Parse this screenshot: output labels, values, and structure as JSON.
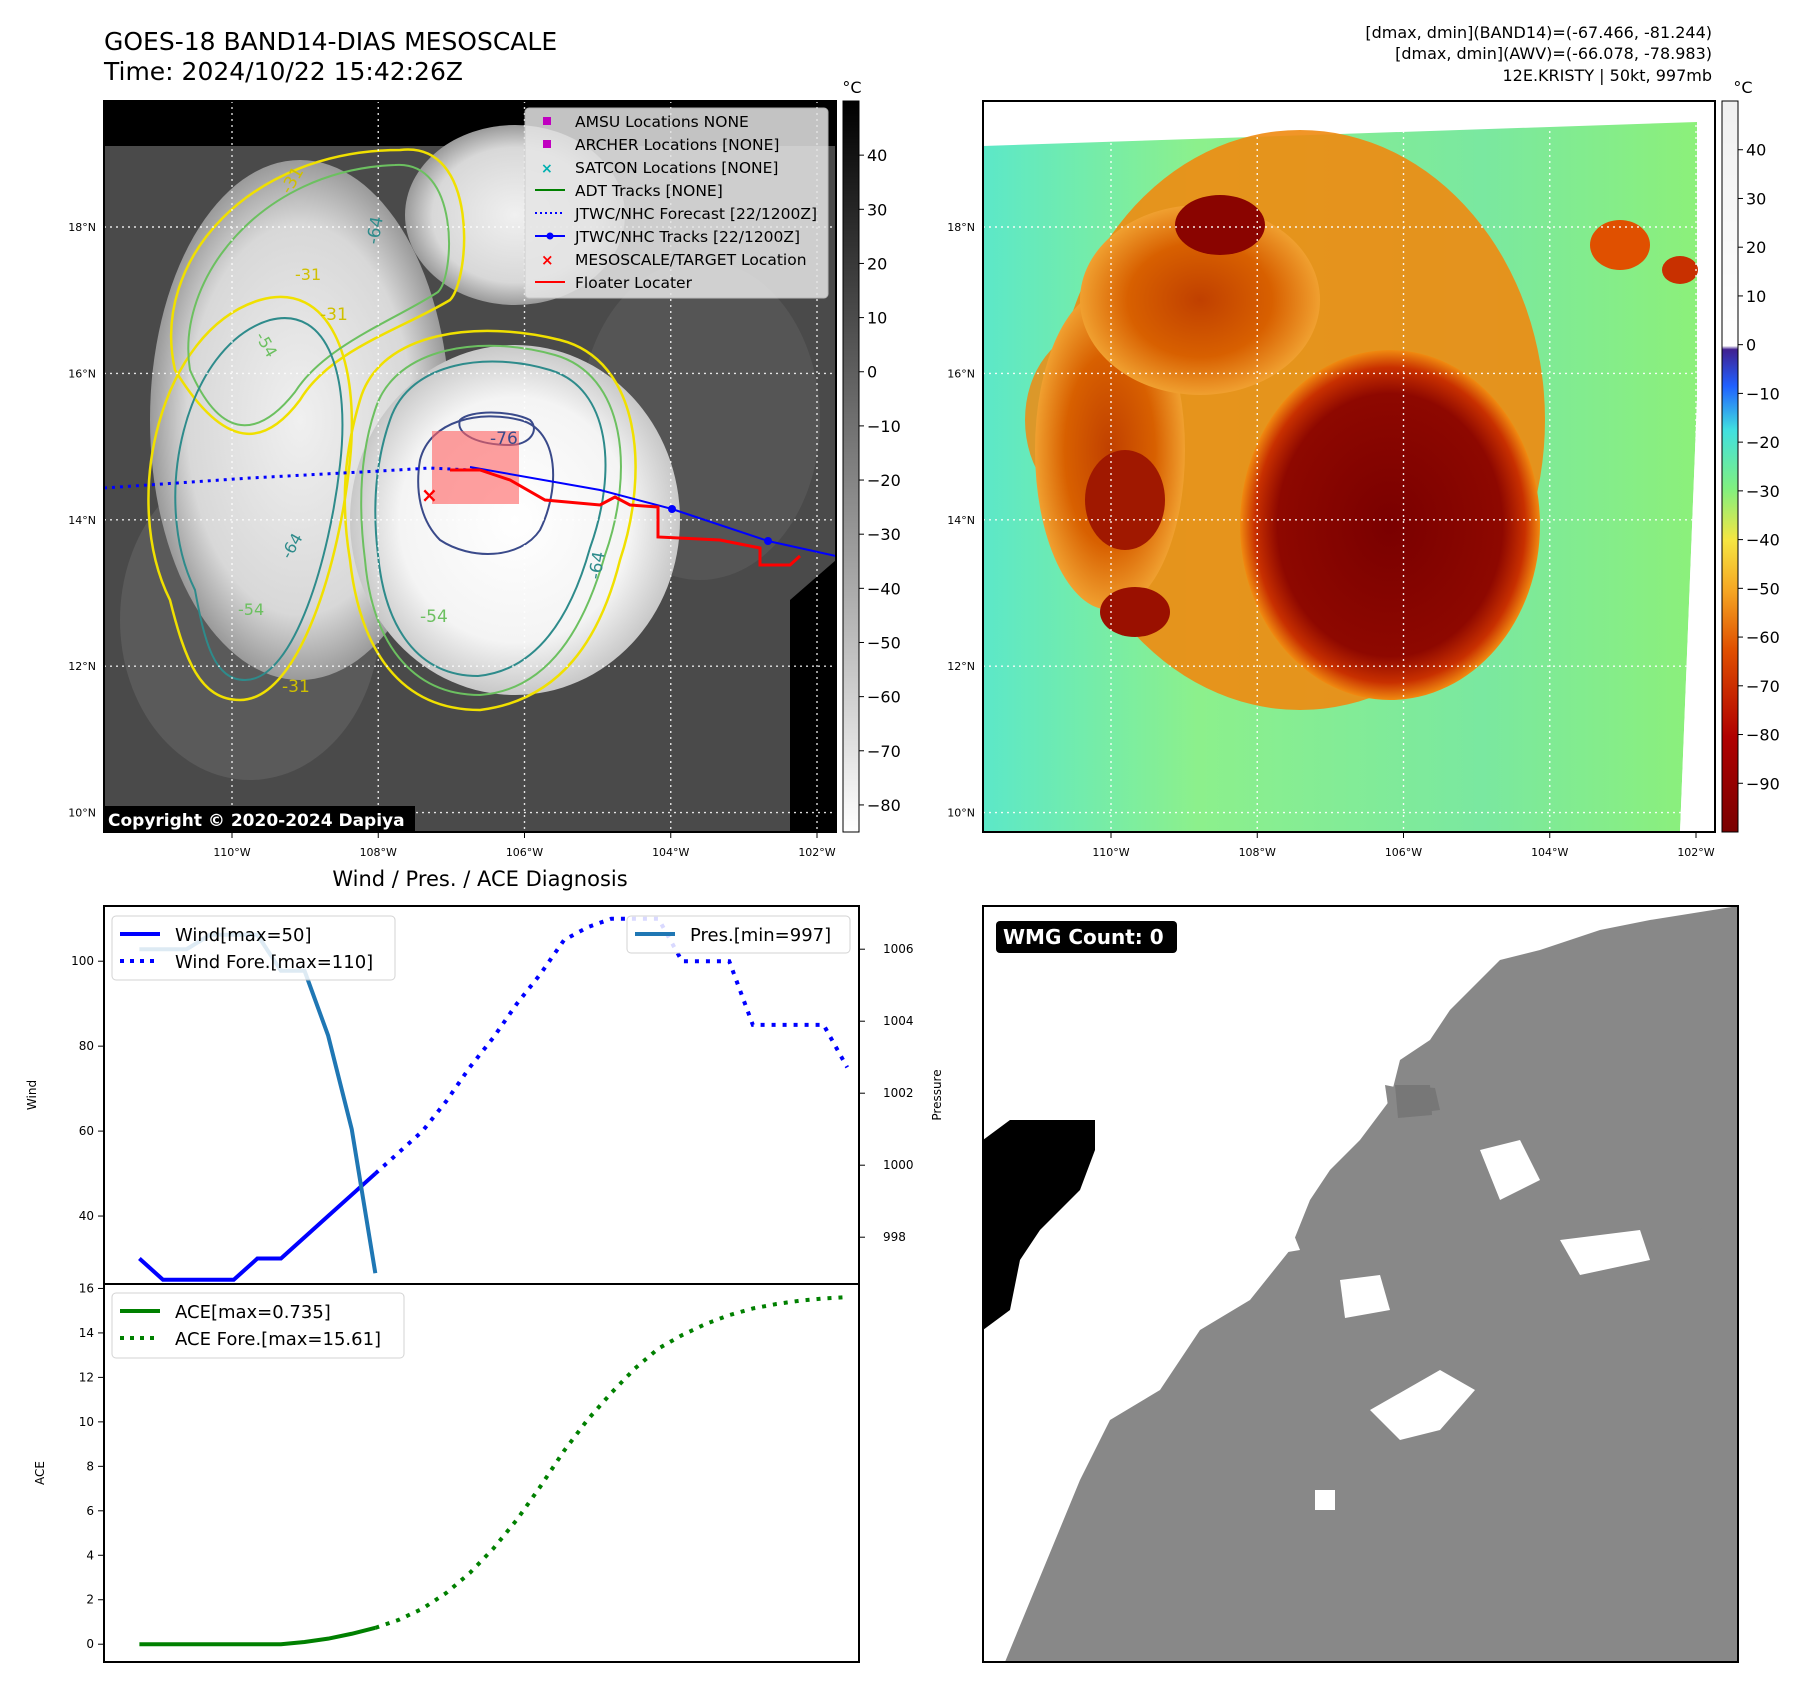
{
  "header": {
    "title_line1": "GOES-18 BAND14-DIAS MESOSCALE",
    "title_line2": "Time: 2024/10/22 15:42:26Z",
    "right_line1": "[dmax, dmin](BAND14)=(-67.466, -81.244)",
    "right_line2": "[dmax, dmin](AWV)=(-66.078, -78.983)",
    "right_line3": "12E.KRISTY | 50kt, 997mb"
  },
  "maps": {
    "lat_labels": [
      "18°N",
      "16°N",
      "14°N",
      "12°N",
      "10°N"
    ],
    "lat_values": [
      18,
      16,
      14,
      12,
      10
    ],
    "lon_labels": [
      "110°W",
      "108°W",
      "106°W",
      "104°W",
      "102°W"
    ],
    "lon_values": [
      -110,
      -108,
      -106,
      -104,
      -102
    ],
    "copyright": "Copyright © 2020-2024 Dapiya",
    "contour_labels": [
      "-76",
      "-64",
      "-64",
      "-54",
      "-31",
      "-31",
      "-31",
      "-54",
      "-64",
      "-54",
      "-31"
    ],
    "colorbar_unit": "°C"
  },
  "colorbar_gray": {
    "ticks": [
      "40",
      "30",
      "20",
      "10",
      "0",
      "−10",
      "−20",
      "−30",
      "−40",
      "−50",
      "−60",
      "−70",
      "−80"
    ],
    "tick_values": [
      40,
      30,
      20,
      10,
      0,
      -10,
      -20,
      -30,
      -40,
      -50,
      -60,
      -70,
      -80
    ],
    "range": [
      -85,
      50
    ]
  },
  "colorbar_color": {
    "ticks": [
      "40",
      "30",
      "20",
      "10",
      "0",
      "−10",
      "−20",
      "−30",
      "−40",
      "−50",
      "−60",
      "−70",
      "−80",
      "−90"
    ],
    "tick_values": [
      40,
      30,
      20,
      10,
      0,
      -10,
      -20,
      -30,
      -40,
      -50,
      -60,
      -70,
      -80,
      -90
    ],
    "range": [
      -100,
      50
    ]
  },
  "legend": {
    "items": [
      {
        "label": "AMSU Locations NONE",
        "marker": "square",
        "color": "#c000c0"
      },
      {
        "label": "ARCHER Locations [NONE]",
        "marker": "square",
        "color": "#c000c0"
      },
      {
        "label": "SATCON Locations [NONE]",
        "marker": "x",
        "color": "#00b0b0"
      },
      {
        "label": "ADT Tracks [NONE]",
        "marker": "line",
        "color": "#008000"
      },
      {
        "label": "JTWC/NHC Forecast [22/1200Z]",
        "marker": "dotted",
        "color": "#0000ff"
      },
      {
        "label": "JTWC/NHC Tracks [22/1200Z]",
        "marker": "line-dot",
        "color": "#0000ff"
      },
      {
        "label": "MESOSCALE/TARGET Location",
        "marker": "x",
        "color": "#ff0000"
      },
      {
        "label": "Floater Locater",
        "marker": "line",
        "color": "#ff0000"
      }
    ]
  },
  "wmg": {
    "label": "WMG Count: 0"
  },
  "colors": {
    "wind": "#0000ff",
    "pressure": "#1f77b4",
    "ace": "#008000",
    "track": "#0000ff",
    "floater": "#ff0000"
  },
  "chart_data": [
    {
      "type": "line",
      "title": "Wind / Pres. / ACE Diagnosis",
      "ylabel": "Wind",
      "y2label": "Pressure",
      "ylim": [
        24,
        113
      ],
      "y2lim": [
        996.7,
        1007.2
      ],
      "yticks": [
        40,
        60,
        80,
        100
      ],
      "y2ticks": [
        998,
        1000,
        1002,
        1004,
        1006
      ],
      "xlim": [
        -1.5,
        30.5
      ],
      "series": [
        {
          "name": "Wind[max=50]",
          "style": "solid",
          "axis": "left",
          "x": [
            0,
            1,
            2,
            3,
            4,
            5,
            6,
            7,
            8,
            9,
            10
          ],
          "values": [
            30,
            25,
            25,
            25,
            25,
            30,
            30,
            35,
            40,
            45,
            50
          ]
        },
        {
          "name": "Wind Fore.[max=110]",
          "style": "dotted",
          "axis": "left",
          "x": [
            10,
            11,
            12,
            13,
            14,
            15,
            16,
            17,
            18,
            19,
            20,
            21,
            22,
            23,
            24,
            25,
            26,
            27,
            28,
            29,
            30
          ],
          "values": [
            50,
            55,
            60,
            67,
            75,
            82,
            90,
            97,
            105,
            108,
            110,
            110,
            110,
            100,
            100,
            100,
            85,
            85,
            85,
            85,
            75
          ]
        },
        {
          "name": "Pres.[min=997]",
          "style": "solid",
          "axis": "right",
          "x": [
            0,
            1,
            2,
            3,
            4,
            5,
            6,
            7,
            8,
            9,
            10
          ],
          "values": [
            1006.0,
            1006.0,
            1006.0,
            1006.4,
            1006.4,
            1006.4,
            1005.4,
            1005.4,
            1003.6,
            1001.0,
            997.0
          ]
        }
      ]
    },
    {
      "type": "line",
      "ylabel": "ACE",
      "ylim": [
        -0.8,
        16.2
      ],
      "yticks": [
        0,
        2,
        4,
        6,
        8,
        10,
        12,
        14,
        16
      ],
      "xlim": [
        -1.5,
        30.5
      ],
      "series": [
        {
          "name": "ACE[max=0.735]",
          "style": "solid",
          "x": [
            0,
            1,
            2,
            3,
            4,
            5,
            6,
            7,
            8,
            9,
            10
          ],
          "values": [
            0,
            0,
            0,
            0,
            0,
            0,
            0,
            0.1,
            0.25,
            0.47,
            0.735
          ]
        },
        {
          "name": "ACE Fore.[max=15.61]",
          "style": "dotted",
          "x": [
            10,
            11,
            12,
            13,
            14,
            15,
            16,
            17,
            18,
            19,
            20,
            21,
            22,
            23,
            24,
            25,
            26,
            27,
            28,
            29,
            30
          ],
          "values": [
            0.735,
            1.1,
            1.6,
            2.3,
            3.2,
            4.3,
            5.6,
            7.1,
            8.7,
            10.1,
            11.3,
            12.4,
            13.3,
            13.9,
            14.4,
            14.8,
            15.1,
            15.3,
            15.45,
            15.55,
            15.61
          ]
        }
      ]
    }
  ]
}
